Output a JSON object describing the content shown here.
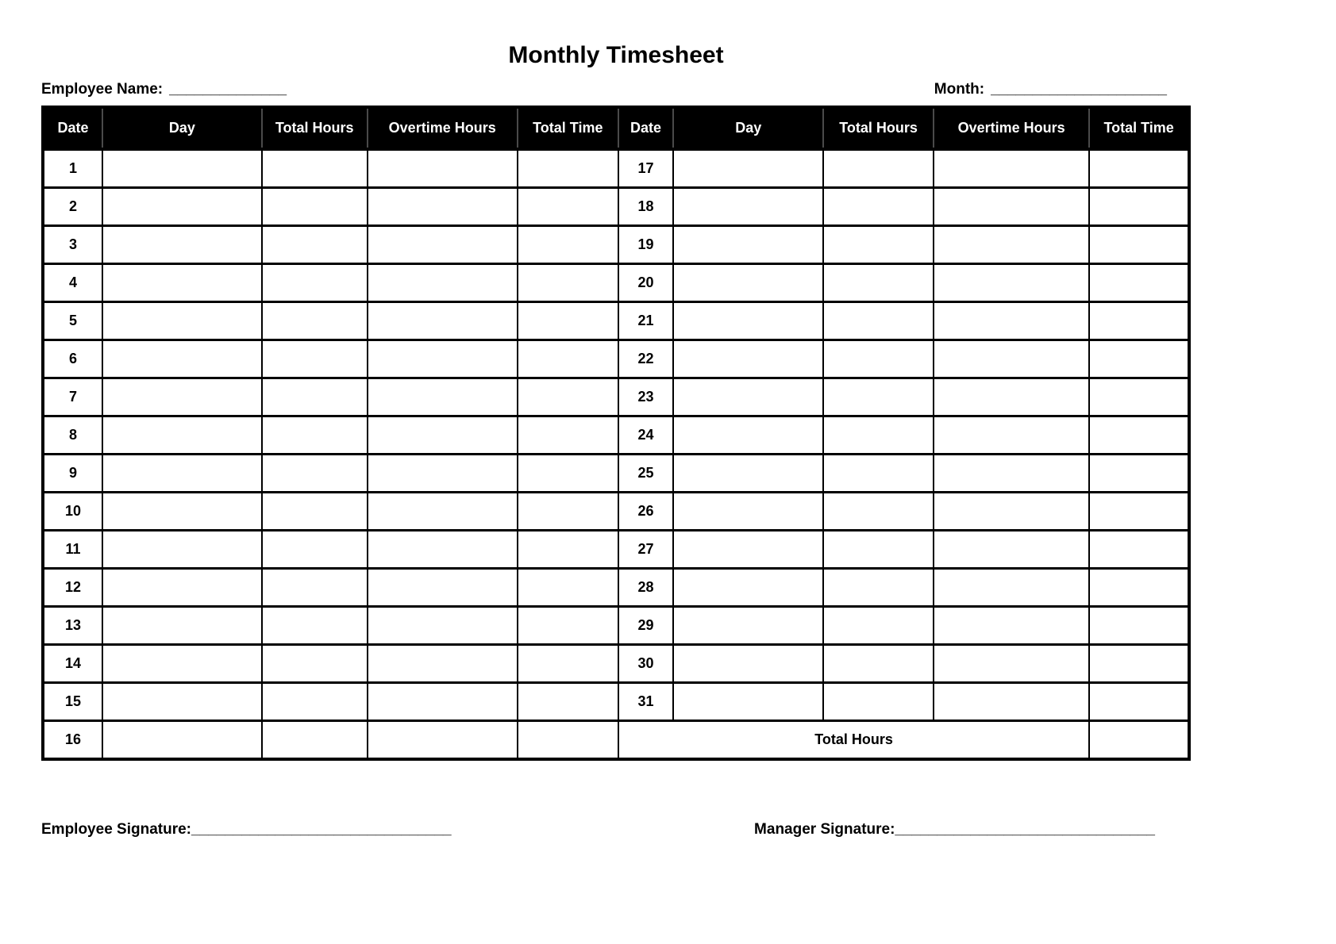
{
  "page": {
    "title": "Monthly Timesheet"
  },
  "fields": {
    "employee_name_label": "Employee Name:",
    "employee_name_line": "______________",
    "month_label": "Month:",
    "month_line": "_____________________"
  },
  "table": {
    "headers": [
      "Date",
      "Day",
      "Total Hours",
      "Overtime Hours",
      "Total Time"
    ],
    "left_dates": [
      "1",
      "2",
      "3",
      "4",
      "5",
      "6",
      "7",
      "8",
      "9",
      "10",
      "11",
      "12",
      "13",
      "14",
      "15",
      "16"
    ],
    "right_dates": [
      "17",
      "18",
      "19",
      "20",
      "21",
      "22",
      "23",
      "24",
      "25",
      "26",
      "27",
      "28",
      "29",
      "30",
      "31"
    ],
    "footer_label": "Total Hours"
  },
  "signatures": {
    "employee_label": "Employee Signature:",
    "employee_line": "_______________________________",
    "manager_label": "Manager Signature:",
    "manager_line": "_______________________________"
  }
}
